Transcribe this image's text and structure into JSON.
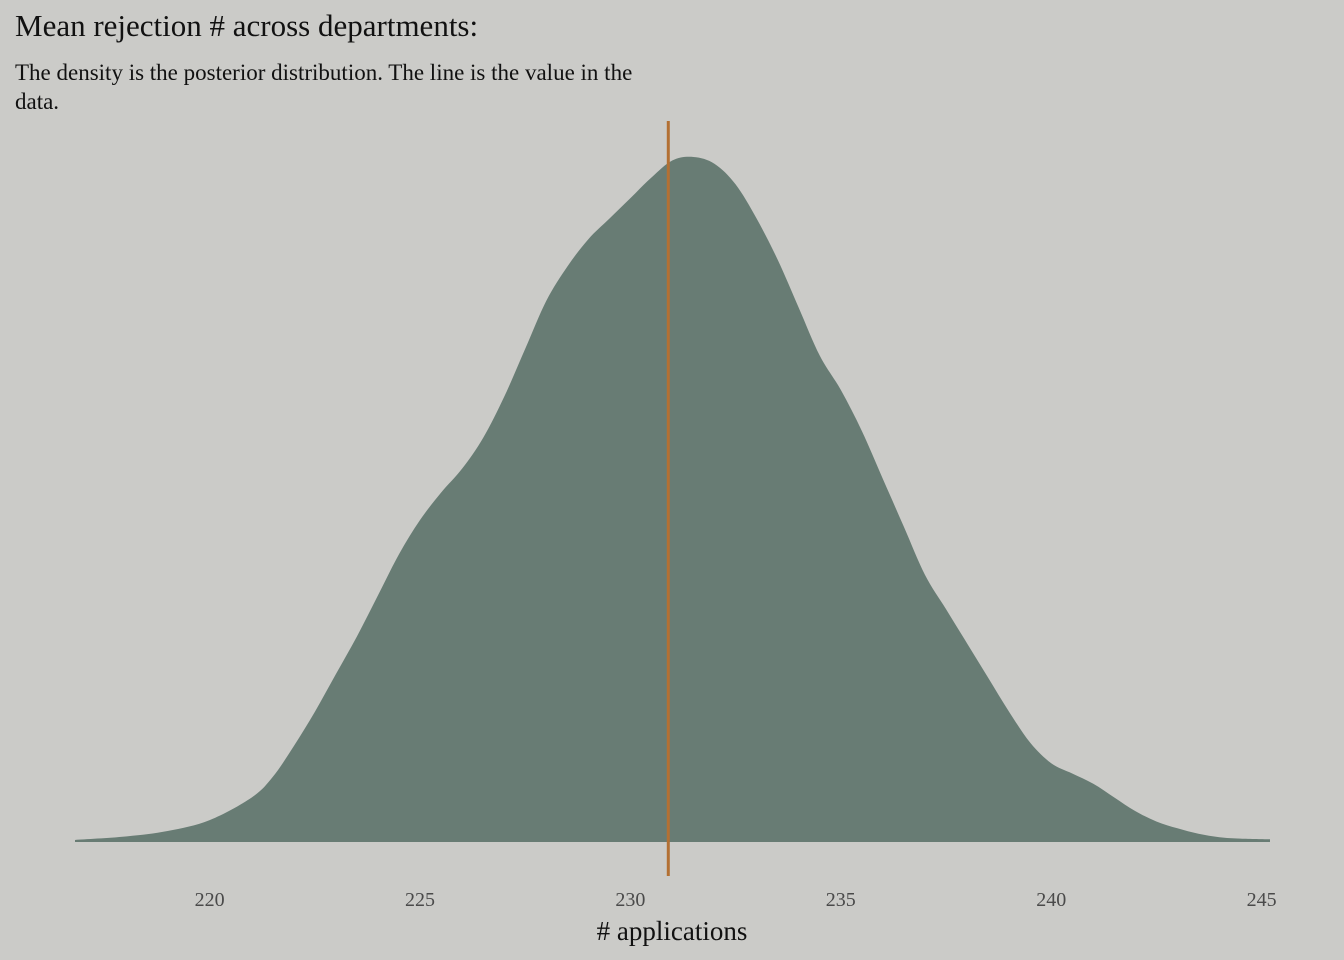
{
  "colors": {
    "background": "#cbcbc8",
    "density_fill": "#687c74",
    "reference_line": "#b37033",
    "text": "#111111",
    "tick_text": "#4a4a4a"
  },
  "chart_data": {
    "type": "area",
    "title": "Mean rejection # across departments:",
    "subtitle": "The density is the posterior distribution. The line is the value in the data.",
    "xlabel": "# applications",
    "ylabel": "",
    "xlim": [
      216.8,
      245.2
    ],
    "ylim": [
      0,
      1
    ],
    "x_ticks": [
      220,
      225,
      230,
      235,
      240,
      245
    ],
    "tick_labels": [
      "220",
      "225",
      "230",
      "235",
      "240",
      "245"
    ],
    "grid": false,
    "legend": "none",
    "reference_line": {
      "x": 230.9,
      "label": "value in the data"
    },
    "series": [
      {
        "x": [
          216.8,
          218,
          219,
          220,
          221,
          221.5,
          222,
          222.5,
          223,
          223.5,
          224,
          224.5,
          225,
          225.5,
          226,
          226.5,
          227,
          227.5,
          228,
          228.5,
          229,
          229.5,
          230,
          230.5,
          231,
          231.5,
          232,
          232.5,
          233,
          233.5,
          234,
          234.5,
          235,
          235.5,
          236,
          236.5,
          237,
          237.5,
          238,
          238.5,
          239,
          239.5,
          240,
          240.5,
          241,
          241.5,
          242,
          242.5,
          243,
          243.5,
          244,
          244.5,
          245.2
        ],
        "y": [
          0.003,
          0.008,
          0.016,
          0.032,
          0.065,
          0.095,
          0.14,
          0.19,
          0.245,
          0.3,
          0.36,
          0.42,
          0.47,
          0.51,
          0.545,
          0.59,
          0.65,
          0.72,
          0.79,
          0.84,
          0.88,
          0.91,
          0.94,
          0.97,
          0.995,
          1.0,
          0.99,
          0.96,
          0.91,
          0.85,
          0.78,
          0.71,
          0.66,
          0.6,
          0.53,
          0.46,
          0.39,
          0.34,
          0.29,
          0.24,
          0.19,
          0.145,
          0.115,
          0.1,
          0.085,
          0.065,
          0.045,
          0.03,
          0.02,
          0.012,
          0.007,
          0.005,
          0.004
        ]
      }
    ]
  }
}
